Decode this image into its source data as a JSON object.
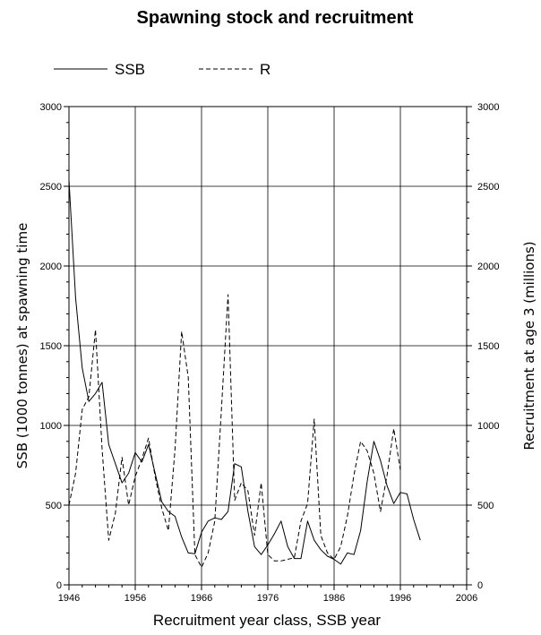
{
  "chart_data": {
    "type": "line",
    "title": "Spawning stock and recruitment",
    "xlabel": "Recruitment year class, SSB year",
    "ylabel_left": "SSB (1000 tonnes) at spawning time",
    "ylabel_right": "Recruitment at age 3 (millions)",
    "xlim": [
      1946,
      2006
    ],
    "ylim_left": [
      0,
      3000
    ],
    "ylim_right": [
      0,
      3000
    ],
    "x_ticks": [
      "1946",
      "1956",
      "1966",
      "1976",
      "1986",
      "1996",
      "2006"
    ],
    "y_ticks_left": [
      "0",
      "500",
      "1000",
      "1500",
      "2000",
      "2500",
      "3000"
    ],
    "y_ticks_right": [
      "0",
      "500",
      "1000",
      "1500",
      "2000",
      "2500",
      "3000"
    ],
    "grid": true,
    "legend_position": "top-left",
    "series": [
      {
        "name": "SSB",
        "style": "solid",
        "axis": "left",
        "x": [
          1946,
          1947,
          1948,
          1949,
          1950,
          1951,
          1952,
          1953,
          1954,
          1955,
          1956,
          1957,
          1958,
          1959,
          1960,
          1961,
          1962,
          1963,
          1964,
          1965,
          1966,
          1967,
          1968,
          1969,
          1970,
          1971,
          1972,
          1973,
          1974,
          1975,
          1976,
          1977,
          1978,
          1979,
          1980,
          1981,
          1982,
          1983,
          1984,
          1985,
          1986,
          1987,
          1988,
          1989,
          1990,
          1991,
          1992,
          1993,
          1994,
          1995,
          1996,
          1997,
          1998,
          1999
        ],
        "values": [
          2540,
          1800,
          1360,
          1150,
          1200,
          1270,
          880,
          760,
          640,
          700,
          830,
          770,
          880,
          700,
          520,
          460,
          430,
          300,
          200,
          195,
          330,
          400,
          420,
          410,
          460,
          760,
          740,
          460,
          240,
          190,
          250,
          320,
          400,
          240,
          165,
          165,
          400,
          280,
          220,
          180,
          160,
          130,
          200,
          190,
          340,
          650,
          900,
          780,
          620,
          510,
          580,
          570,
          410,
          280
        ]
      },
      {
        "name": "R",
        "style": "dashed",
        "axis": "right",
        "x": [
          1946,
          1947,
          1948,
          1949,
          1950,
          1951,
          1952,
          1953,
          1954,
          1955,
          1956,
          1957,
          1958,
          1959,
          1960,
          1961,
          1962,
          1963,
          1964,
          1965,
          1966,
          1967,
          1968,
          1969,
          1970,
          1971,
          1972,
          1973,
          1974,
          1975,
          1976,
          1977,
          1978,
          1979,
          1980,
          1981,
          1982,
          1983,
          1984,
          1985,
          1986,
          1987,
          1988,
          1989,
          1990,
          1991,
          1992,
          1993,
          1994,
          1995,
          1996
        ],
        "values": [
          500,
          700,
          1100,
          1180,
          1600,
          850,
          280,
          450,
          800,
          500,
          680,
          790,
          920,
          680,
          480,
          340,
          850,
          1590,
          1300,
          190,
          110,
          200,
          400,
          1100,
          1820,
          530,
          640,
          590,
          310,
          640,
          190,
          150,
          150,
          160,
          170,
          400,
          510,
          1040,
          310,
          200,
          160,
          240,
          430,
          690,
          900,
          840,
          700,
          460,
          690,
          980,
          720
        ]
      }
    ]
  }
}
